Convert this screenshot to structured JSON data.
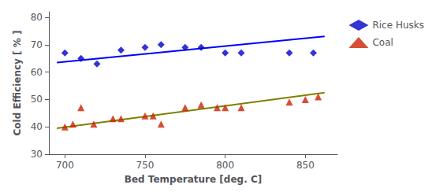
{
  "chart_data": {
    "type": "scatter",
    "xlabel": "Bed Temperature [deg. C]",
    "ylabel": "Cold Efficiency [ % ]",
    "xlim": [
      690,
      870
    ],
    "xticks": [
      700,
      750,
      800,
      850
    ],
    "ylim": [
      30,
      82
    ],
    "yticks": [
      30,
      40,
      50,
      60,
      70,
      80
    ],
    "grid": false,
    "legend": "right",
    "series": [
      {
        "type": "line",
        "color": "#0000FF",
        "x": [
          695,
          862
        ],
        "values": [
          63.5,
          73.0
        ]
      },
      {
        "type": "line",
        "color": "#808000",
        "x": [
          695,
          862
        ],
        "values": [
          39.5,
          52.5
        ]
      },
      {
        "name": "Rice Husks",
        "type": "scatter",
        "color": "#0000CC",
        "marker": "diamond",
        "x": [
          700,
          710,
          720,
          735,
          750,
          760,
          775,
          785,
          800,
          810,
          840,
          855
        ],
        "values": [
          67,
          65,
          63,
          68,
          69,
          70,
          69,
          69,
          67,
          67,
          67,
          67
        ]
      },
      {
        "name": "Coal",
        "type": "scatter",
        "color": "#CC2200",
        "marker": "triangle",
        "x": [
          700,
          705,
          710,
          718,
          730,
          735,
          750,
          755,
          760,
          775,
          785,
          795,
          800,
          810,
          840,
          850,
          858
        ],
        "values": [
          40,
          41,
          47,
          41,
          43,
          43,
          44,
          44,
          41,
          47,
          48,
          47,
          47,
          47,
          49,
          50,
          51
        ]
      }
    ]
  }
}
